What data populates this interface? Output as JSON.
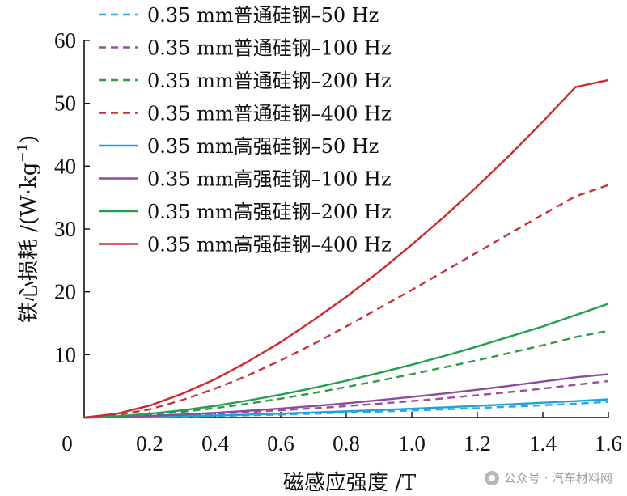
{
  "chart_data": {
    "type": "line",
    "xlabel": "磁感应强度 /T",
    "ylabel": "铁心损耗 /(W·kg⁻¹)",
    "ylabel_main": "铁心损耗 /(W·kg",
    "ylabel_sup": "−1",
    "ylabel_close": ")",
    "xlim": [
      0,
      1.6
    ],
    "ylim": [
      0,
      60
    ],
    "x_ticks": [
      0.2,
      0.4,
      0.6,
      0.8,
      1.0,
      1.2,
      1.4,
      1.6
    ],
    "x_tick_labels": [
      "0.2",
      "0.4",
      "0.6",
      "0.8",
      "1.0",
      "1.2",
      "1.4",
      "1.6"
    ],
    "y_ticks": [
      10,
      20,
      30,
      40,
      50,
      60
    ],
    "y_tick_labels": [
      "10",
      "20",
      "30",
      "40",
      "50",
      "60"
    ],
    "origin_label": "0",
    "x": [
      0,
      0.1,
      0.2,
      0.3,
      0.4,
      0.5,
      0.6,
      0.7,
      0.8,
      0.9,
      1.0,
      1.1,
      1.2,
      1.3,
      1.4,
      1.5,
      1.6
    ],
    "series": [
      {
        "name": "0.35 mm普通硅钢–50 Hz",
        "color": "#29a9e0",
        "dash": true,
        "values": [
          0,
          0.03,
          0.08,
          0.14,
          0.24,
          0.35,
          0.48,
          0.62,
          0.78,
          0.94,
          1.12,
          1.3,
          1.5,
          1.72,
          1.95,
          2.2,
          2.5
        ]
      },
      {
        "name": "0.35 mm普通硅钢–100 Hz",
        "color": "#9a4f9a",
        "dash": true,
        "values": [
          0,
          0.06,
          0.2,
          0.38,
          0.6,
          0.86,
          1.15,
          1.47,
          1.82,
          2.2,
          2.62,
          3.07,
          3.55,
          4.05,
          4.6,
          5.2,
          5.8
        ]
      },
      {
        "name": "0.35 mm普通硅钢–200 Hz",
        "color": "#2e9a4a",
        "dash": true,
        "values": [
          0,
          0.15,
          0.45,
          0.9,
          1.5,
          2.2,
          3.0,
          3.9,
          4.85,
          5.85,
          6.9,
          8.0,
          9.1,
          10.3,
          11.5,
          12.8,
          13.8
        ]
      },
      {
        "name": "0.35 mm普通硅钢–400 Hz",
        "color": "#c8323c",
        "dash": true,
        "values": [
          0,
          0.4,
          1.3,
          2.8,
          4.6,
          6.7,
          9.1,
          11.7,
          14.5,
          17.4,
          20.3,
          23.3,
          26.3,
          29.3,
          32.3,
          35.2,
          37.0
        ]
      },
      {
        "name": "0.35 mm高强硅钢–50 Hz",
        "color": "#1aa3dc",
        "dash": false,
        "values": [
          0,
          0.04,
          0.1,
          0.2,
          0.32,
          0.46,
          0.62,
          0.8,
          0.99,
          1.19,
          1.4,
          1.62,
          1.85,
          2.1,
          2.35,
          2.62,
          2.9
        ]
      },
      {
        "name": "0.35 mm高强硅钢–100 Hz",
        "color": "#8e4a9e",
        "dash": false,
        "values": [
          0,
          0.08,
          0.25,
          0.48,
          0.75,
          1.07,
          1.43,
          1.83,
          2.27,
          2.75,
          3.27,
          3.83,
          4.42,
          5.05,
          5.72,
          6.4,
          6.9
        ]
      },
      {
        "name": "0.35 mm高强硅钢–200 Hz",
        "color": "#22a04e",
        "dash": false,
        "values": [
          0,
          0.2,
          0.6,
          1.15,
          1.85,
          2.7,
          3.65,
          4.7,
          5.85,
          7.1,
          8.4,
          9.8,
          11.3,
          12.9,
          14.5,
          16.3,
          18.1
        ]
      },
      {
        "name": "0.35 mm高强硅钢–400 Hz",
        "color": "#cc2a30",
        "dash": false,
        "values": [
          0,
          0.6,
          1.9,
          3.8,
          6.1,
          8.9,
          12.0,
          15.5,
          19.2,
          23.2,
          27.5,
          32.0,
          36.8,
          41.8,
          47.1,
          52.6,
          53.7
        ]
      }
    ]
  },
  "watermark": {
    "text": "公众号 · 汽车材料网",
    "icon": "wechat-icon"
  }
}
